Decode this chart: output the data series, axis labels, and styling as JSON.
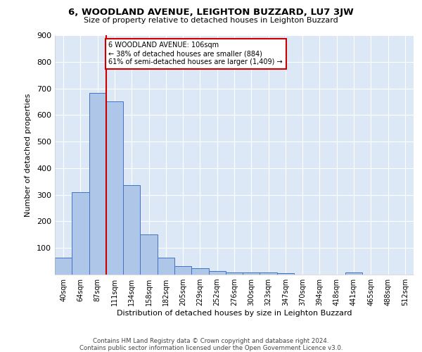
{
  "title1": "6, WOODLAND AVENUE, LEIGHTON BUZZARD, LU7 3JW",
  "title2": "Size of property relative to detached houses in Leighton Buzzard",
  "xlabel": "Distribution of detached houses by size in Leighton Buzzard",
  "ylabel": "Number of detached properties",
  "bar_labels": [
    "40sqm",
    "64sqm",
    "87sqm",
    "111sqm",
    "134sqm",
    "158sqm",
    "182sqm",
    "205sqm",
    "229sqm",
    "252sqm",
    "276sqm",
    "300sqm",
    "323sqm",
    "347sqm",
    "370sqm",
    "394sqm",
    "418sqm",
    "441sqm",
    "465sqm",
    "488sqm",
    "512sqm"
  ],
  "bar_values": [
    63,
    311,
    684,
    651,
    335,
    150,
    63,
    33,
    24,
    12,
    9,
    9,
    8,
    5,
    0,
    0,
    0,
    7,
    0,
    0,
    0
  ],
  "bar_color": "#aec6e8",
  "bar_edge_color": "#4472c4",
  "vline_x_index": 2.5,
  "vline_color": "#cc0000",
  "annotation_text": "6 WOODLAND AVENUE: 106sqm\n← 38% of detached houses are smaller (884)\n61% of semi-detached houses are larger (1,409) →",
  "annotation_box_color": "#ffffff",
  "annotation_box_edge": "#cc0000",
  "background_color": "#dce8f5",
  "footer_text": "Contains HM Land Registry data © Crown copyright and database right 2024.\nContains public sector information licensed under the Open Government Licence v3.0.",
  "ylim": [
    0,
    900
  ],
  "yticks": [
    0,
    100,
    200,
    300,
    400,
    500,
    600,
    700,
    800,
    900
  ]
}
